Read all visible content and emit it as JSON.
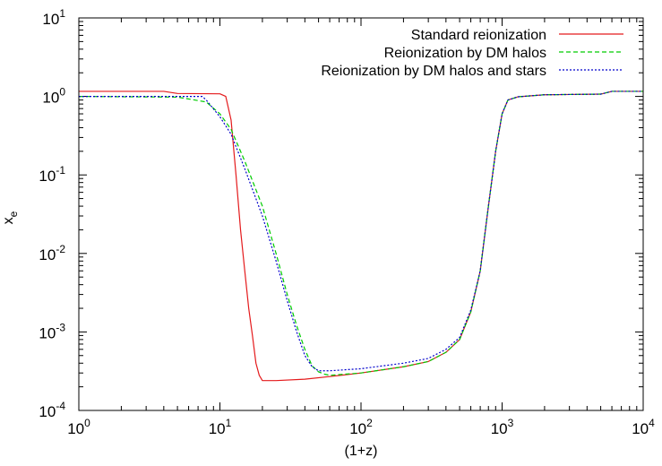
{
  "chart_data": {
    "type": "line",
    "xlabel": "(1+z)",
    "ylabel_base": "x",
    "ylabel_sub": "e",
    "x_scale": "log",
    "y_scale": "log",
    "xlim": [
      1,
      10000
    ],
    "ylim": [
      0.0001,
      10
    ],
    "grid": false,
    "legend_position": "top-right",
    "x_ticks": [
      {
        "base": "10",
        "exp": "0",
        "value": 1
      },
      {
        "base": "10",
        "exp": "1",
        "value": 10
      },
      {
        "base": "10",
        "exp": "2",
        "value": 100
      },
      {
        "base": "10",
        "exp": "3",
        "value": 1000
      },
      {
        "base": "10",
        "exp": "4",
        "value": 10000
      }
    ],
    "y_ticks": [
      {
        "base": "10",
        "exp": "-4",
        "value": 0.0001
      },
      {
        "base": "10",
        "exp": "-3",
        "value": 0.001
      },
      {
        "base": "10",
        "exp": "-2",
        "value": 0.01
      },
      {
        "base": "10",
        "exp": "-1",
        "value": 0.1
      },
      {
        "base": "10",
        "exp": "0",
        "value": 1
      },
      {
        "base": "10",
        "exp": "1",
        "value": 10
      }
    ],
    "series": [
      {
        "name": "Standard reionization",
        "color": "#e41a1c",
        "dash": "solid",
        "points": [
          [
            1,
            1.16
          ],
          [
            4,
            1.16
          ],
          [
            5,
            1.09
          ],
          [
            10,
            1.08
          ],
          [
            11,
            1.0
          ],
          [
            12,
            0.5
          ],
          [
            13,
            0.1
          ],
          [
            14,
            0.02
          ],
          [
            15,
            0.006
          ],
          [
            16,
            0.002
          ],
          [
            17,
            0.0009
          ],
          [
            18,
            0.0004
          ],
          [
            19,
            0.00028
          ],
          [
            20,
            0.00024
          ],
          [
            25,
            0.00024
          ],
          [
            40,
            0.00025
          ],
          [
            60,
            0.00027
          ],
          [
            100,
            0.0003
          ],
          [
            200,
            0.00036
          ],
          [
            300,
            0.00042
          ],
          [
            400,
            0.00055
          ],
          [
            500,
            0.0008
          ],
          [
            600,
            0.0018
          ],
          [
            700,
            0.006
          ],
          [
            800,
            0.04
          ],
          [
            900,
            0.2
          ],
          [
            1000,
            0.6
          ],
          [
            1100,
            0.9
          ],
          [
            1300,
            0.99
          ],
          [
            2000,
            1.05
          ],
          [
            5000,
            1.07
          ],
          [
            6000,
            1.16
          ],
          [
            10000,
            1.16
          ]
        ]
      },
      {
        "name": "Reionization by DM halos",
        "color": "#00cc00",
        "dash": "dashed",
        "points": [
          [
            1,
            1.0
          ],
          [
            5,
            0.98
          ],
          [
            8,
            0.85
          ],
          [
            10,
            0.6
          ],
          [
            12,
            0.38
          ],
          [
            15,
            0.15
          ],
          [
            20,
            0.04
          ],
          [
            25,
            0.01
          ],
          [
            30,
            0.003
          ],
          [
            35,
            0.0012
          ],
          [
            40,
            0.0006
          ],
          [
            45,
            0.00037
          ],
          [
            50,
            0.00031
          ],
          [
            55,
            0.00029
          ],
          [
            60,
            0.00028
          ],
          [
            100,
            0.0003
          ],
          [
            200,
            0.00036
          ],
          [
            300,
            0.00042
          ],
          [
            400,
            0.00055
          ],
          [
            500,
            0.0008
          ],
          [
            600,
            0.0018
          ],
          [
            700,
            0.006
          ],
          [
            800,
            0.04
          ],
          [
            900,
            0.2
          ],
          [
            1000,
            0.6
          ],
          [
            1100,
            0.9
          ],
          [
            1300,
            0.99
          ],
          [
            2000,
            1.05
          ],
          [
            5000,
            1.07
          ],
          [
            6000,
            1.16
          ],
          [
            10000,
            1.16
          ]
        ]
      },
      {
        "name": "Reionization by DM halos and stars",
        "color": "#0000cc",
        "dash": "dotted",
        "points": [
          [
            1,
            1.0
          ],
          [
            7.5,
            1.0
          ],
          [
            8,
            0.9
          ],
          [
            10,
            0.55
          ],
          [
            12,
            0.33
          ],
          [
            15,
            0.12
          ],
          [
            20,
            0.03
          ],
          [
            25,
            0.008
          ],
          [
            30,
            0.0025
          ],
          [
            35,
            0.001
          ],
          [
            40,
            0.0005
          ],
          [
            45,
            0.00036
          ],
          [
            50,
            0.00032
          ],
          [
            60,
            0.00032
          ],
          [
            100,
            0.00034
          ],
          [
            200,
            0.0004
          ],
          [
            300,
            0.00046
          ],
          [
            400,
            0.0006
          ],
          [
            500,
            0.00085
          ],
          [
            600,
            0.0019
          ],
          [
            700,
            0.006
          ],
          [
            800,
            0.04
          ],
          [
            900,
            0.2
          ],
          [
            1000,
            0.6
          ],
          [
            1100,
            0.9
          ],
          [
            1300,
            0.99
          ],
          [
            2000,
            1.05
          ],
          [
            5000,
            1.07
          ],
          [
            6000,
            1.16
          ],
          [
            10000,
            1.16
          ]
        ]
      }
    ]
  }
}
